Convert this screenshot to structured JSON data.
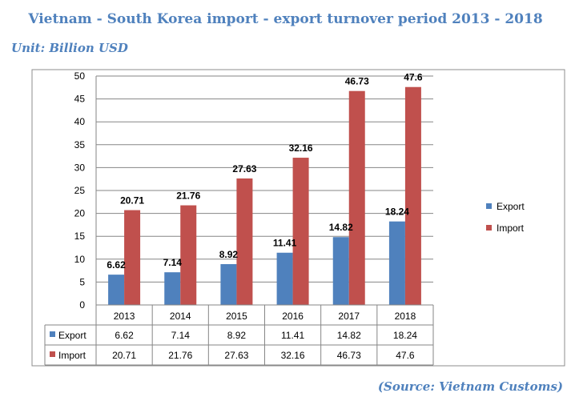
{
  "page": {
    "title": "Vietnam - South Korea import - export turnover period 2013 - 2018",
    "unit": "Unit: Billion USD",
    "source": "(Source: Vietnam Customs)"
  },
  "chart_data": {
    "type": "bar",
    "categories": [
      "2013",
      "2014",
      "2015",
      "2016",
      "2017",
      "2018"
    ],
    "series": [
      {
        "name": "Export",
        "color": "#4f81bd",
        "values": [
          6.62,
          7.14,
          8.92,
          11.41,
          14.82,
          18.24
        ]
      },
      {
        "name": "Import",
        "color": "#c0504d",
        "values": [
          20.71,
          21.76,
          27.63,
          32.16,
          46.73,
          47.6
        ]
      }
    ],
    "ylim": [
      0,
      50
    ],
    "yticks": [
      0,
      5,
      10,
      15,
      20,
      25,
      30,
      35,
      40,
      45,
      50
    ],
    "grid": true,
    "legend": "right",
    "data_table": true
  }
}
